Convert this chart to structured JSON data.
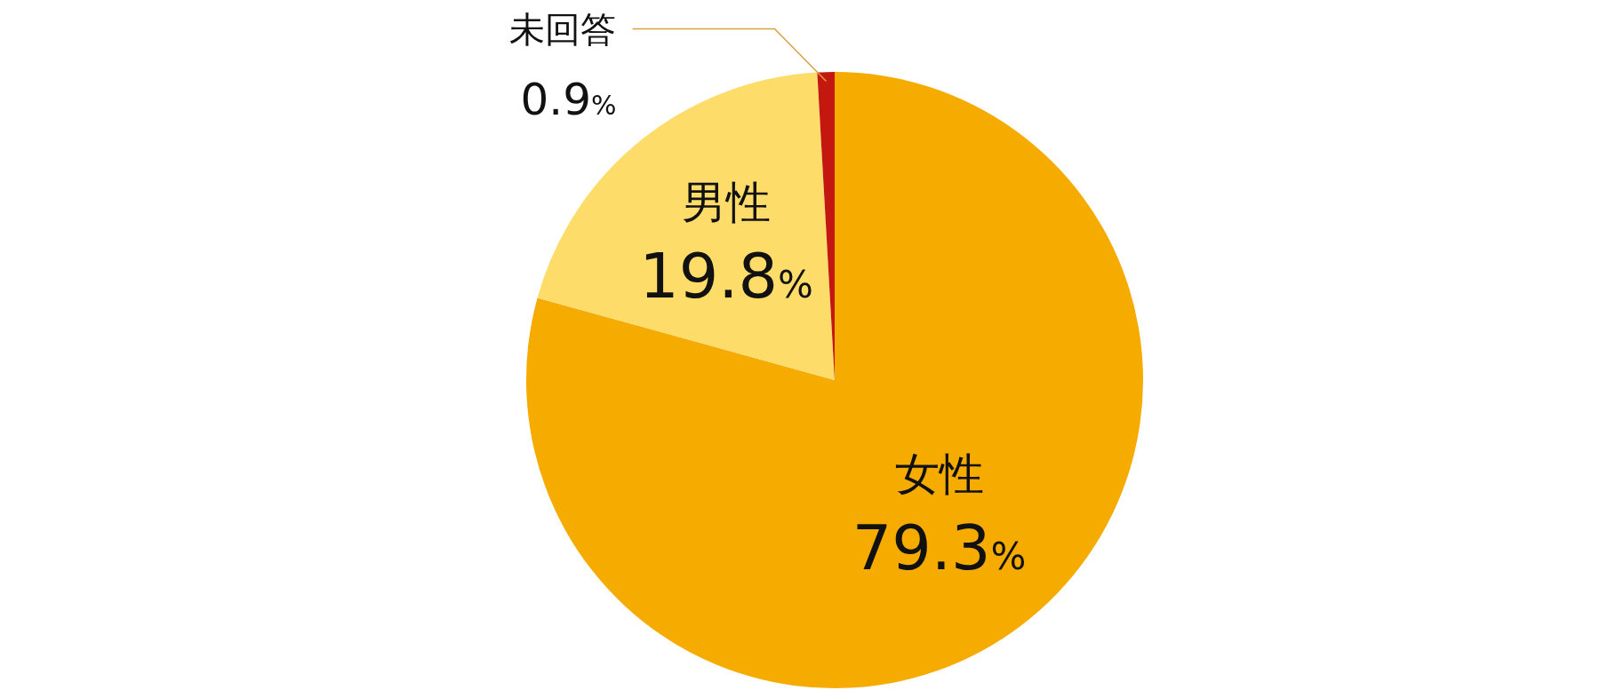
{
  "chart_data": {
    "type": "pie",
    "categories": [
      "女性",
      "男性",
      "未回答"
    ],
    "values": [
      79.3,
      19.8,
      0.9
    ],
    "colors": [
      "#f5ab00",
      "#fddc6a",
      "#c3170f"
    ],
    "value_labels": [
      "79.3%",
      "19.8%",
      "0.9%"
    ],
    "legend": false
  }
}
